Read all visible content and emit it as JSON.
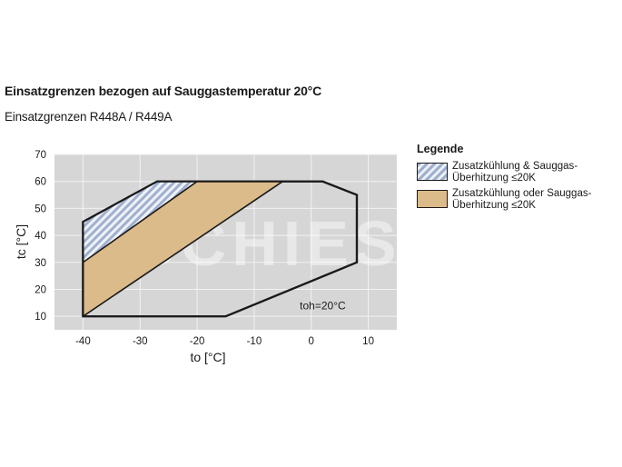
{
  "title": "Einsatzgrenzen bezogen auf Sauggastemperatur 20°C",
  "subtitle": "Einsatzgrenzen R448A / R449A",
  "watermark": "SCHIESSL",
  "legend": {
    "title": "Legende",
    "items": [
      {
        "label": "Zusatzkühlung & Sauggas-\nÜberhitzung ≤20K",
        "style": "hatch",
        "color": "#9fb0cf"
      },
      {
        "label": "Zusatzkühlung oder Sauggas-\nÜberhitzung ≤20K",
        "style": "solid",
        "color": "#dcbb8a"
      }
    ]
  },
  "chart_data": {
    "type": "area",
    "xlabel": "to [°C]",
    "ylabel": "tc [°C]",
    "xlim": [
      -45,
      15
    ],
    "ylim": [
      5,
      70
    ],
    "xticks": [
      -40,
      -30,
      -20,
      -10,
      0,
      10
    ],
    "yticks": [
      10,
      20,
      30,
      40,
      50,
      60,
      70
    ],
    "grid": true,
    "legend_position": "right",
    "annotation": "toh=20°C",
    "colors": {
      "plot_background": "#d6d6d6",
      "grid": "#f2f2f2",
      "outline": "#1a1a1a",
      "hatch": "#9fb0cf",
      "tan": "#dcbb8a"
    },
    "regions": [
      {
        "name": "envelope",
        "points": [
          [
            -40,
            10
          ],
          [
            -15,
            10
          ],
          [
            8,
            30
          ],
          [
            8,
            55
          ],
          [
            2,
            60
          ],
          [
            -27,
            60
          ],
          [
            -40,
            45
          ]
        ]
      },
      {
        "name": "Zusatzkühlung oder Sauggas-Überhitzung ≤20K",
        "points": [
          [
            -40,
            10
          ],
          [
            -5,
            60
          ],
          [
            -20,
            60
          ],
          [
            -40,
            30
          ]
        ]
      },
      {
        "name": "Zusatzkühlung & Sauggas-Überhitzung ≤20K",
        "points": [
          [
            -40,
            30
          ],
          [
            -20,
            60
          ],
          [
            -27,
            60
          ],
          [
            -40,
            45
          ]
        ]
      }
    ],
    "lines": [
      {
        "points": [
          [
            -40,
            10
          ],
          [
            -5,
            60
          ]
        ]
      },
      {
        "points": [
          [
            -40,
            30
          ],
          [
            -20,
            60
          ]
        ]
      }
    ]
  }
}
